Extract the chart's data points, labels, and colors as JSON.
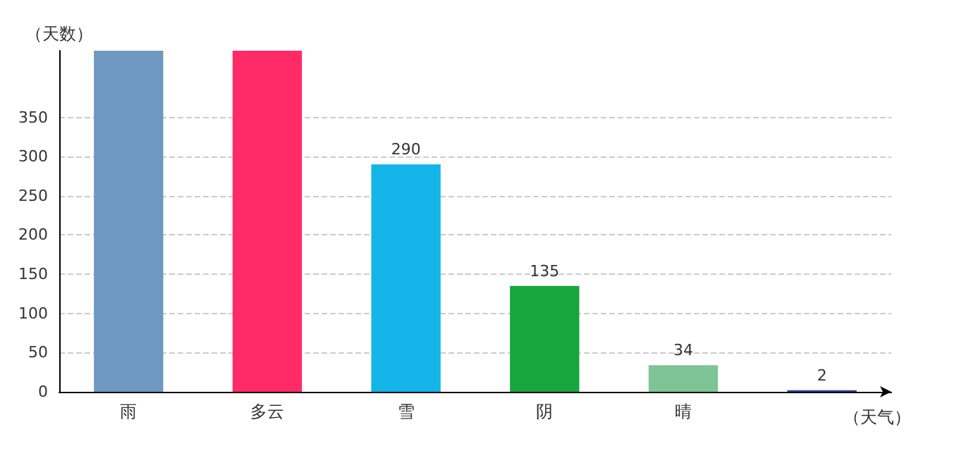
{
  "chart_data": {
    "type": "bar",
    "xlabel": "（天气）",
    "ylabel": "（天数）",
    "categories": [
      "雨",
      "多云",
      "雪",
      "阴",
      "晴",
      null
    ],
    "values": [
      435,
      435,
      290,
      135,
      34,
      2
    ],
    "value_labels": [
      null,
      null,
      "290",
      "135",
      "34",
      "2"
    ],
    "colors": [
      "#6e98c0",
      "#ff2a68",
      "#13b5e8",
      "#17a63f",
      "#7ec495",
      "#2a3ea0"
    ],
    "ylim": [
      0,
      435
    ],
    "yticks": [
      0,
      50,
      100,
      150,
      200,
      250,
      300,
      350
    ],
    "grid": "y"
  }
}
